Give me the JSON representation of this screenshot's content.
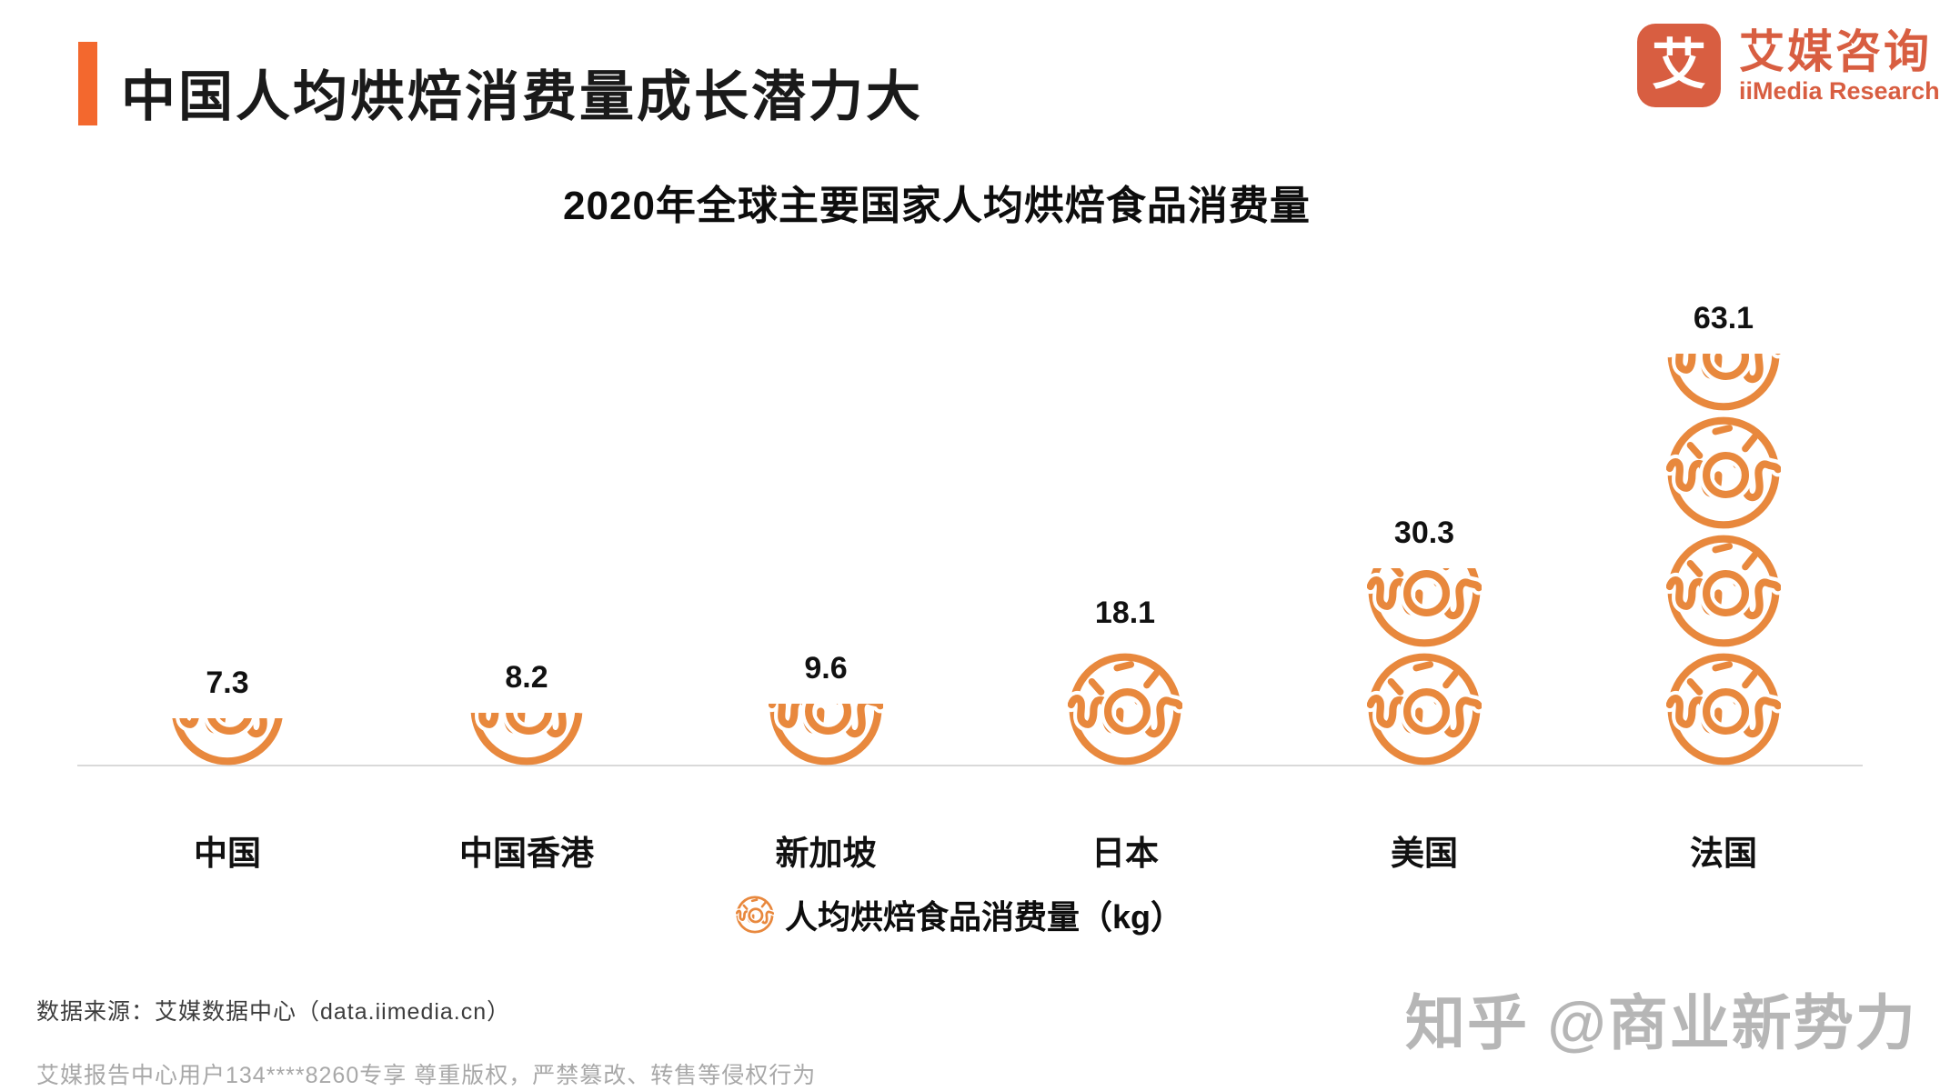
{
  "header": {
    "title": "中国人均烘焙消费量成长潜力大",
    "accent_color": "#F3682E"
  },
  "logo": {
    "glyph": "艾",
    "name_cn": "艾媒咨询",
    "name_en": "iiMedia Research",
    "color": "#D85E41"
  },
  "chart_data": {
    "type": "bar",
    "subtype": "pictogram-donut-stack",
    "title": "2020年全球主要国家人均烘焙食品消费量",
    "categories": [
      "中国",
      "中国香港",
      "新加坡",
      "日本",
      "美国",
      "法国"
    ],
    "values": [
      7.3,
      8.2,
      9.6,
      18.1,
      30.3,
      63.1
    ],
    "unit": "kg",
    "legend": "人均烘焙食品消费量（kg）",
    "legend_position": "bottom-center",
    "icon": "donut-icon",
    "icon_color": "#E8883D",
    "baseline_color": "#D9D9D9",
    "grid": false,
    "value_labels": [
      "7.3",
      "8.2",
      "9.6",
      "18.1",
      "30.3",
      "63.1"
    ]
  },
  "footer": {
    "source": "数据来源：艾媒数据中心（data.iimedia.cn）",
    "copyright": "艾媒报告中心用户134****8260专享 尊重版权，严禁篡改、转售等侵权行为",
    "watermark": "知乎 @商业新势力"
  }
}
